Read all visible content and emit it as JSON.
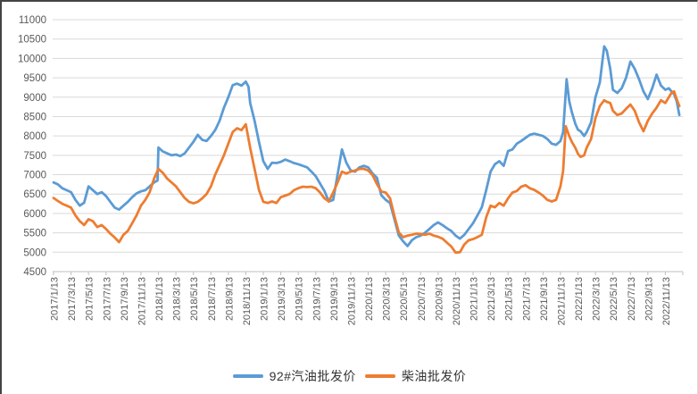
{
  "chart_data": {
    "type": "line",
    "title": "",
    "grid": "horizontal",
    "legend_position": "bottom-center",
    "point_t_unit": "months since 2017/1/13",
    "x_axis": {
      "first_label": "2017/1/13",
      "last_label": "2022/11/13",
      "label_step_months": 2,
      "tick_labels": [
        "2017/1/13",
        "2017/3/13",
        "2017/5/13",
        "2017/7/13",
        "2017/9/13",
        "2017/11/13",
        "2018/1/13",
        "2018/3/13",
        "2018/5/13",
        "2018/7/13",
        "2018/9/13",
        "2018/11/13",
        "2019/1/13",
        "2019/3/13",
        "2019/5/13",
        "2019/7/13",
        "2019/9/13",
        "2019/11/13",
        "2020/1/13",
        "2020/3/13",
        "2020/5/13",
        "2020/7/13",
        "2020/9/13",
        "2020/11/13",
        "2021/1/13",
        "2021/3/13",
        "2021/5/13",
        "2021/7/13",
        "2021/9/13",
        "2021/11/13",
        "2022/1/13",
        "2022/3/13",
        "2022/5/13",
        "2022/7/13",
        "2022/9/13",
        "2022/11/13"
      ]
    },
    "y_axis": {
      "min": 4500,
      "max": 11000,
      "step": 500,
      "tick_labels": [
        "4500",
        "5000",
        "5500",
        "6000",
        "6500",
        "7000",
        "7500",
        "8000",
        "8500",
        "9000",
        "9500",
        "10000",
        "10500",
        "11000"
      ]
    },
    "series": [
      {
        "name": "92#汽油批发价",
        "color": "#5B9BD5",
        "points": [
          [
            0,
            6800
          ],
          [
            0.5,
            6750
          ],
          [
            1,
            6650
          ],
          [
            1.5,
            6600
          ],
          [
            2,
            6550
          ],
          [
            2.5,
            6350
          ],
          [
            3,
            6200
          ],
          [
            3.5,
            6280
          ],
          [
            4,
            6700
          ],
          [
            4.5,
            6600
          ],
          [
            5,
            6500
          ],
          [
            5.5,
            6550
          ],
          [
            6,
            6450
          ],
          [
            6.5,
            6300
          ],
          [
            7,
            6150
          ],
          [
            7.5,
            6100
          ],
          [
            8,
            6200
          ],
          [
            8.5,
            6300
          ],
          [
            9,
            6420
          ],
          [
            9.5,
            6520
          ],
          [
            10,
            6570
          ],
          [
            10.5,
            6600
          ],
          [
            11,
            6700
          ],
          [
            11.5,
            6800
          ],
          [
            11.9,
            6850
          ],
          [
            12,
            7700
          ],
          [
            12.5,
            7600
          ],
          [
            13,
            7550
          ],
          [
            13.5,
            7500
          ],
          [
            14,
            7520
          ],
          [
            14.5,
            7480
          ],
          [
            15,
            7550
          ],
          [
            15.5,
            7700
          ],
          [
            16,
            7850
          ],
          [
            16.5,
            8030
          ],
          [
            17,
            7900
          ],
          [
            17.5,
            7870
          ],
          [
            18,
            8000
          ],
          [
            18.5,
            8150
          ],
          [
            19,
            8390
          ],
          [
            19.5,
            8730
          ],
          [
            20,
            9000
          ],
          [
            20.5,
            9310
          ],
          [
            21,
            9350
          ],
          [
            21.5,
            9300
          ],
          [
            22,
            9400
          ],
          [
            22.3,
            9270
          ],
          [
            22.5,
            8850
          ],
          [
            23,
            8390
          ],
          [
            23.5,
            7850
          ],
          [
            24,
            7350
          ],
          [
            24.5,
            7150
          ],
          [
            25,
            7310
          ],
          [
            25.5,
            7300
          ],
          [
            26,
            7330
          ],
          [
            26.5,
            7390
          ],
          [
            27,
            7350
          ],
          [
            27.5,
            7300
          ],
          [
            28,
            7270
          ],
          [
            28.5,
            7230
          ],
          [
            29,
            7190
          ],
          [
            29.5,
            7080
          ],
          [
            30,
            6960
          ],
          [
            30.5,
            6770
          ],
          [
            31,
            6580
          ],
          [
            31.5,
            6310
          ],
          [
            32,
            6350
          ],
          [
            32.5,
            7000
          ],
          [
            33,
            7650
          ],
          [
            33.5,
            7310
          ],
          [
            34,
            7110
          ],
          [
            34.5,
            7080
          ],
          [
            35,
            7190
          ],
          [
            35.5,
            7230
          ],
          [
            36,
            7190
          ],
          [
            36.5,
            7030
          ],
          [
            37,
            6920
          ],
          [
            37.5,
            6470
          ],
          [
            38,
            6350
          ],
          [
            38.5,
            6270
          ],
          [
            39,
            5850
          ],
          [
            39.5,
            5430
          ],
          [
            40,
            5280
          ],
          [
            40.5,
            5160
          ],
          [
            41,
            5310
          ],
          [
            41.5,
            5390
          ],
          [
            42,
            5430
          ],
          [
            42.5,
            5500
          ],
          [
            43,
            5600
          ],
          [
            43.5,
            5700
          ],
          [
            44,
            5770
          ],
          [
            44.5,
            5700
          ],
          [
            45,
            5620
          ],
          [
            45.5,
            5550
          ],
          [
            46,
            5430
          ],
          [
            46.5,
            5350
          ],
          [
            47,
            5450
          ],
          [
            47.5,
            5600
          ],
          [
            48,
            5750
          ],
          [
            48.5,
            5950
          ],
          [
            49,
            6160
          ],
          [
            49.5,
            6600
          ],
          [
            50,
            7080
          ],
          [
            50.5,
            7270
          ],
          [
            51,
            7350
          ],
          [
            51.5,
            7230
          ],
          [
            52,
            7610
          ],
          [
            52.5,
            7650
          ],
          [
            53,
            7800
          ],
          [
            53.5,
            7870
          ],
          [
            54,
            7950
          ],
          [
            54.5,
            8030
          ],
          [
            55,
            8060
          ],
          [
            55.5,
            8030
          ],
          [
            56,
            8000
          ],
          [
            56.5,
            7920
          ],
          [
            57,
            7800
          ],
          [
            57.5,
            7770
          ],
          [
            58,
            7870
          ],
          [
            58.3,
            8100
          ],
          [
            58.7,
            9460
          ],
          [
            59,
            8900
          ],
          [
            59.3,
            8620
          ],
          [
            59.7,
            8310
          ],
          [
            60,
            8160
          ],
          [
            60.3,
            8120
          ],
          [
            60.7,
            8000
          ],
          [
            61,
            8100
          ],
          [
            61.5,
            8350
          ],
          [
            62,
            9000
          ],
          [
            62.5,
            9380
          ],
          [
            63,
            10310
          ],
          [
            63.3,
            10200
          ],
          [
            63.7,
            9730
          ],
          [
            64,
            9190
          ],
          [
            64.5,
            9110
          ],
          [
            65,
            9230
          ],
          [
            65.5,
            9500
          ],
          [
            66,
            9920
          ],
          [
            66.5,
            9730
          ],
          [
            67,
            9460
          ],
          [
            67.5,
            9150
          ],
          [
            68,
            8950
          ],
          [
            68.5,
            9230
          ],
          [
            69,
            9580
          ],
          [
            69.5,
            9300
          ],
          [
            70,
            9190
          ],
          [
            70.4,
            9230
          ],
          [
            70.7,
            9150
          ],
          [
            71,
            9080
          ],
          [
            71.3,
            8900
          ],
          [
            71.6,
            8540
          ]
        ]
      },
      {
        "name": "柴油批发价",
        "color": "#ED7D31",
        "points": [
          [
            0,
            6400
          ],
          [
            0.5,
            6320
          ],
          [
            1,
            6250
          ],
          [
            1.5,
            6200
          ],
          [
            2,
            6150
          ],
          [
            2.5,
            5950
          ],
          [
            3,
            5800
          ],
          [
            3.5,
            5700
          ],
          [
            4,
            5850
          ],
          [
            4.5,
            5800
          ],
          [
            5,
            5650
          ],
          [
            5.5,
            5700
          ],
          [
            6,
            5600
          ],
          [
            6.5,
            5480
          ],
          [
            7,
            5380
          ],
          [
            7.5,
            5260
          ],
          [
            8,
            5450
          ],
          [
            8.5,
            5550
          ],
          [
            9,
            5750
          ],
          [
            9.5,
            5950
          ],
          [
            10,
            6200
          ],
          [
            10.5,
            6350
          ],
          [
            11,
            6550
          ],
          [
            11.5,
            6900
          ],
          [
            12,
            7150
          ],
          [
            12.5,
            7050
          ],
          [
            13,
            6900
          ],
          [
            13.5,
            6800
          ],
          [
            14,
            6700
          ],
          [
            14.5,
            6550
          ],
          [
            15,
            6400
          ],
          [
            15.5,
            6300
          ],
          [
            16,
            6260
          ],
          [
            16.5,
            6300
          ],
          [
            17,
            6390
          ],
          [
            17.5,
            6500
          ],
          [
            18,
            6700
          ],
          [
            18.5,
            7000
          ],
          [
            19,
            7250
          ],
          [
            19.5,
            7500
          ],
          [
            20,
            7800
          ],
          [
            20.5,
            8100
          ],
          [
            21,
            8200
          ],
          [
            21.5,
            8150
          ],
          [
            22,
            8300
          ],
          [
            22.5,
            7690
          ],
          [
            23,
            7150
          ],
          [
            23.5,
            6610
          ],
          [
            24,
            6300
          ],
          [
            24.5,
            6270
          ],
          [
            25,
            6310
          ],
          [
            25.5,
            6270
          ],
          [
            26,
            6420
          ],
          [
            26.5,
            6460
          ],
          [
            27,
            6500
          ],
          [
            27.5,
            6600
          ],
          [
            28,
            6650
          ],
          [
            28.5,
            6690
          ],
          [
            29,
            6680
          ],
          [
            29.5,
            6690
          ],
          [
            30,
            6650
          ],
          [
            30.5,
            6540
          ],
          [
            31,
            6390
          ],
          [
            31.5,
            6310
          ],
          [
            32,
            6540
          ],
          [
            32.5,
            6800
          ],
          [
            33,
            7080
          ],
          [
            33.5,
            7030
          ],
          [
            34,
            7080
          ],
          [
            34.5,
            7110
          ],
          [
            35,
            7150
          ],
          [
            35.5,
            7150
          ],
          [
            36,
            7110
          ],
          [
            36.5,
            6990
          ],
          [
            37,
            6760
          ],
          [
            37.5,
            6570
          ],
          [
            38,
            6540
          ],
          [
            38.5,
            6390
          ],
          [
            39,
            5930
          ],
          [
            39.5,
            5510
          ],
          [
            40,
            5390
          ],
          [
            40.5,
            5430
          ],
          [
            41,
            5450
          ],
          [
            41.5,
            5480
          ],
          [
            42,
            5470
          ],
          [
            42.5,
            5450
          ],
          [
            43,
            5480
          ],
          [
            43.5,
            5430
          ],
          [
            44,
            5400
          ],
          [
            44.5,
            5350
          ],
          [
            45,
            5250
          ],
          [
            45.5,
            5150
          ],
          [
            46,
            4990
          ],
          [
            46.5,
            5000
          ],
          [
            47,
            5200
          ],
          [
            47.5,
            5310
          ],
          [
            48,
            5340
          ],
          [
            48.5,
            5390
          ],
          [
            49,
            5450
          ],
          [
            49.5,
            5900
          ],
          [
            50,
            6200
          ],
          [
            50.5,
            6160
          ],
          [
            51,
            6270
          ],
          [
            51.5,
            6200
          ],
          [
            52,
            6390
          ],
          [
            52.5,
            6540
          ],
          [
            53,
            6580
          ],
          [
            53.5,
            6690
          ],
          [
            54,
            6730
          ],
          [
            54.5,
            6650
          ],
          [
            55,
            6610
          ],
          [
            55.5,
            6540
          ],
          [
            56,
            6460
          ],
          [
            56.5,
            6350
          ],
          [
            57,
            6310
          ],
          [
            57.5,
            6350
          ],
          [
            58,
            6700
          ],
          [
            58.3,
            7100
          ],
          [
            58.6,
            8250
          ],
          [
            59,
            8000
          ],
          [
            59.3,
            7850
          ],
          [
            59.7,
            7690
          ],
          [
            60,
            7540
          ],
          [
            60.3,
            7460
          ],
          [
            60.7,
            7500
          ],
          [
            61,
            7700
          ],
          [
            61.5,
            7920
          ],
          [
            62,
            8460
          ],
          [
            62.5,
            8770
          ],
          [
            63,
            8920
          ],
          [
            63.3,
            8880
          ],
          [
            63.7,
            8850
          ],
          [
            64,
            8650
          ],
          [
            64.5,
            8540
          ],
          [
            65,
            8580
          ],
          [
            65.5,
            8700
          ],
          [
            66,
            8810
          ],
          [
            66.5,
            8650
          ],
          [
            67,
            8350
          ],
          [
            67.5,
            8120
          ],
          [
            68,
            8390
          ],
          [
            68.5,
            8580
          ],
          [
            69,
            8730
          ],
          [
            69.5,
            8920
          ],
          [
            70,
            8850
          ],
          [
            70.4,
            9000
          ],
          [
            70.7,
            9110
          ],
          [
            71,
            9150
          ],
          [
            71.3,
            8950
          ],
          [
            71.6,
            8770
          ]
        ]
      }
    ]
  },
  "legend": {
    "items": [
      {
        "label": "92#汽油批发价",
        "color": "#5B9BD5"
      },
      {
        "label": "柴油批发价",
        "color": "#ED7D31"
      }
    ]
  },
  "styles": {
    "grid_color": "#D9D9D9",
    "axis_color": "#BFBFBF",
    "tick_label_color": "#595959",
    "legend_text_color": "#333333",
    "background": "#FFFFFF"
  }
}
